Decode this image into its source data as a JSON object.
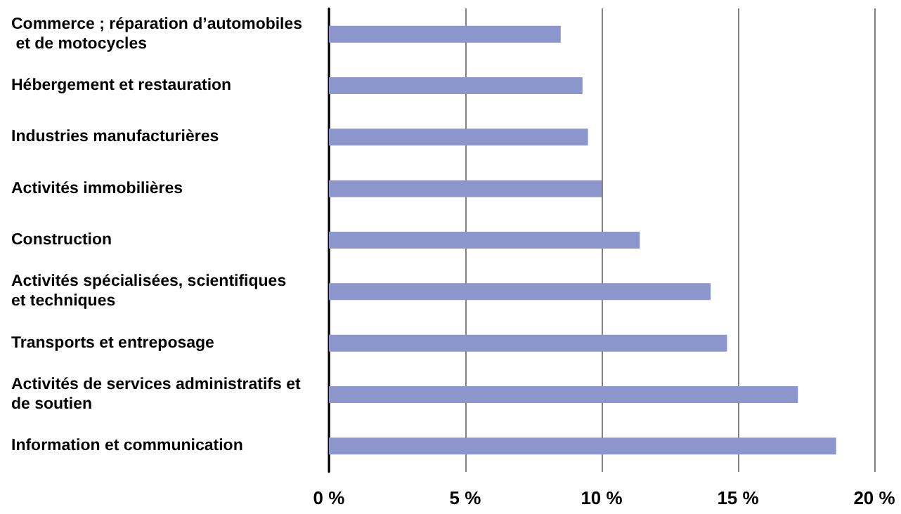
{
  "chart_data": {
    "type": "bar",
    "orientation": "horizontal",
    "categories": [
      "Commerce ; réparation d’automobiles et de motocycles",
      "Hébergement et restauration",
      "Industries manufacturières",
      "Activités immobilières",
      "Construction",
      "Activités spécialisées, scientifiques et techniques",
      "Transports et entreposage",
      "Activités de services administratifs et de soutien",
      "Information et communication"
    ],
    "values": [
      8.5,
      9.3,
      9.5,
      10.0,
      11.4,
      14.0,
      14.6,
      17.2,
      18.6
    ],
    "color": "#8c95cc",
    "xlim": [
      0,
      20
    ],
    "xticks": [
      {
        "value": 0,
        "label": "0 %"
      },
      {
        "value": 5,
        "label": "5 %"
      },
      {
        "value": 10,
        "label": "10 %"
      },
      {
        "value": 15,
        "label": "15 %"
      },
      {
        "value": 20,
        "label": "20 %"
      }
    ],
    "grid": "x"
  }
}
